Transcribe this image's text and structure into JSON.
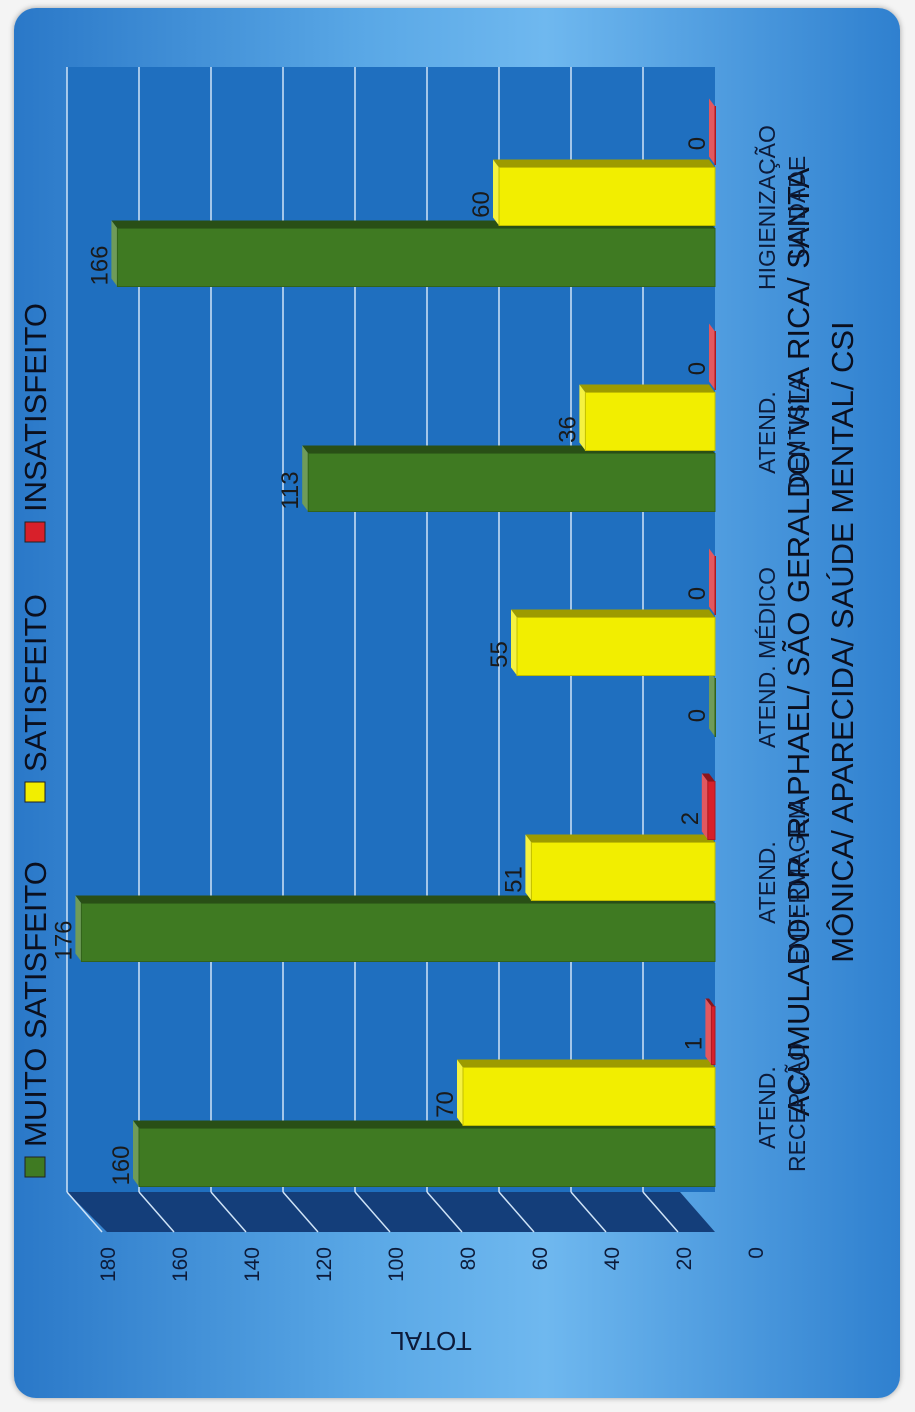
{
  "chart_data": {
    "type": "bar",
    "orientation": "rotated-90-clockwise",
    "title_lines": [
      "ACUMULADO: DR. RAPHAEL/ SÃO GERALDO/ VILA RICA/ SANTA",
      "MÔNICA/ APARECIDA/ SAÚDE MENTAL/ CSI"
    ],
    "ylabel": "TOTAL",
    "ylim": [
      0,
      180
    ],
    "yticks": [
      "0",
      "20",
      "40",
      "60",
      "80",
      "100",
      "120",
      "140",
      "160",
      "180"
    ],
    "categories": [
      [
        "ATEND.",
        "RECEPÇÃO"
      ],
      [
        "ATEND.",
        "ENFERMAGEM"
      ],
      [
        "ATEND. MÉDICO"
      ],
      [
        "ATEND.",
        "DENTISTA"
      ],
      [
        "HIGIENIZAÇÃO",
        "UNIDADE"
      ]
    ],
    "series": [
      {
        "name": "MUITO SATISFEITO",
        "color": "#3f7a22",
        "values": [
          160,
          176,
          0,
          113,
          166
        ]
      },
      {
        "name": "SATISFEITO",
        "color": "#f2ee00",
        "values": [
          70,
          51,
          55,
          36,
          60
        ]
      },
      {
        "name": "INSATISFEITO",
        "color": "#d8202a",
        "values": [
          1,
          2,
          0,
          0,
          0
        ]
      }
    ],
    "grid": true,
    "legend_position": "bottom",
    "colors": {
      "plot_background": "#1f6fbf",
      "floor": "#143e7a",
      "gridline": "#cfe3f7"
    }
  }
}
